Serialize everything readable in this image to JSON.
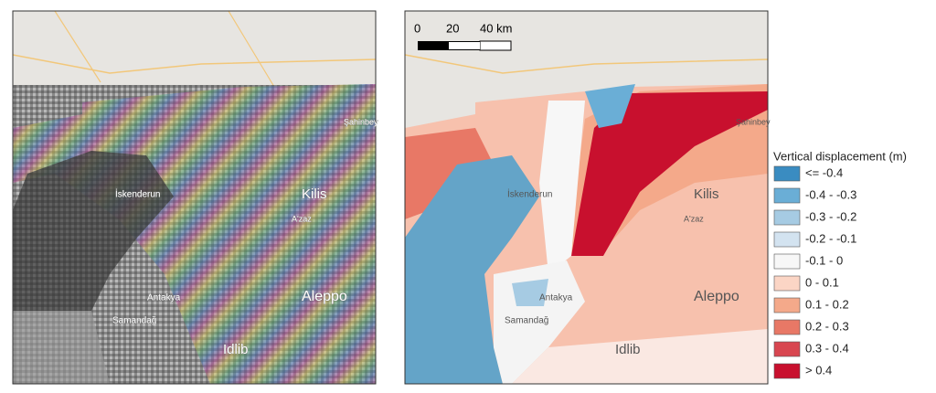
{
  "left_map": {
    "labels": [
      "Şahinbey",
      "Kilis",
      "İskenderun",
      "A'zaz",
      "Antakya",
      "Samandağ",
      "Aleppo",
      "Idlib"
    ]
  },
  "right_map": {
    "labels": [
      "Şahinbey",
      "Kilis",
      "İskenderun",
      "A'zaz",
      "Antakya",
      "Samandağ",
      "Aleppo",
      "Idlib"
    ],
    "scale_bar": [
      "0",
      "20",
      "40 km"
    ]
  },
  "legend": {
    "title": "Vertical displacement (m)",
    "items": [
      {
        "label": "<= -0.4",
        "color": "#3a8cc1"
      },
      {
        "label": "-0.4 - -0.3",
        "color": "#6aaed6"
      },
      {
        "label": "-0.3 - -0.2",
        "color": "#a6cbe3"
      },
      {
        "label": "-0.2 - -0.1",
        "color": "#d3e3f0"
      },
      {
        "label": "-0.1 - 0",
        "color": "#f7f7f7"
      },
      {
        "label": "0 - 0.1",
        "color": "#fbd5c5"
      },
      {
        "label": "0.1 - 0.2",
        "color": "#f4a98a"
      },
      {
        "label": "0.2 - 0.3",
        "color": "#e87866"
      },
      {
        "label": "0.3 - 0.4",
        "color": "#d84650"
      },
      {
        "label": "> 0.4",
        "color": "#c8102e"
      }
    ]
  }
}
